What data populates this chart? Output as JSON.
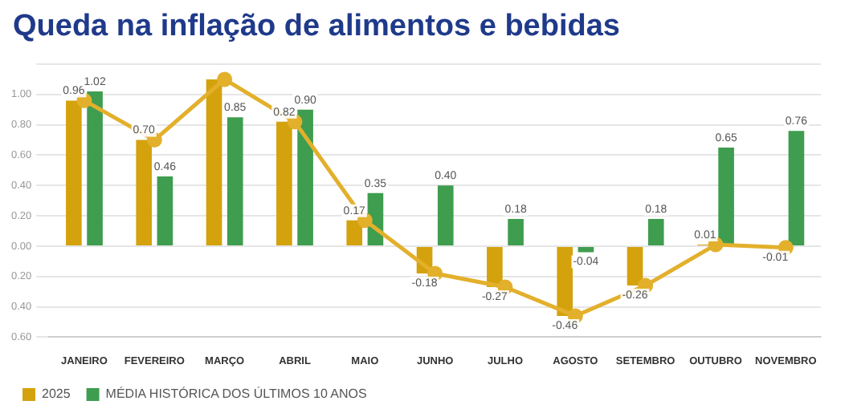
{
  "chart_data": {
    "type": "bar",
    "title": "Queda na inflação de alimentos e bebidas",
    "categories": [
      "JANEIRO",
      "FEVEREIRO",
      "MARÇO",
      "ABRIL",
      "MAIO",
      "JUNHO",
      "JULHO",
      "AGOSTO",
      "SETEMBRO",
      "OUTUBRO",
      "NOVEMBRO"
    ],
    "series": [
      {
        "name": "2025",
        "color": "#d4a20c",
        "values": [
          0.96,
          0.7,
          1.1,
          0.82,
          0.17,
          -0.18,
          -0.27,
          -0.46,
          -0.26,
          0.01,
          -0.01
        ],
        "value_labels": [
          "0.96",
          "0.70",
          null,
          "0.82",
          "0.17",
          "-0.18",
          "-0.27",
          "-0.46",
          "-0.26",
          "0.01",
          "-0.01"
        ]
      },
      {
        "name": "MÉDIA HISTÓRICA DOS ÚLTIMOS 10 ANOS",
        "color": "#3f9d4f",
        "values": [
          1.02,
          0.46,
          0.85,
          0.9,
          0.35,
          0.4,
          0.18,
          -0.04,
          0.18,
          0.65,
          0.76
        ],
        "value_labels": [
          "1.02",
          "0.46",
          "0.85",
          "0.90",
          "0.35",
          "0.40",
          "0.18",
          "-0.04",
          "0.18",
          "0.65",
          "0.76"
        ]
      },
      {
        "type": "line",
        "color": "#e3b02c",
        "values": [
          0.96,
          0.7,
          1.1,
          0.82,
          0.17,
          -0.18,
          -0.27,
          -0.46,
          -0.26,
          0.01,
          -0.01
        ]
      }
    ],
    "ylim": [
      -0.6,
      1.2
    ],
    "yticks": [
      {
        "value": -0.6,
        "label": "0.60"
      },
      {
        "value": -0.4,
        "label": "0.40"
      },
      {
        "value": -0.2,
        "label": "0.20"
      },
      {
        "value": 0,
        "label": "0.00"
      },
      {
        "value": 0.2,
        "label": "0.20"
      },
      {
        "value": 0.4,
        "label": "0.40"
      },
      {
        "value": 0.6,
        "label": "0.60"
      },
      {
        "value": 0.8,
        "label": "0.80"
      },
      {
        "value": 1.0,
        "label": "1.00"
      },
      {
        "value": 1.2,
        "label": null
      }
    ],
    "grid": "y",
    "legend": "bottom left",
    "marker": "circle"
  }
}
